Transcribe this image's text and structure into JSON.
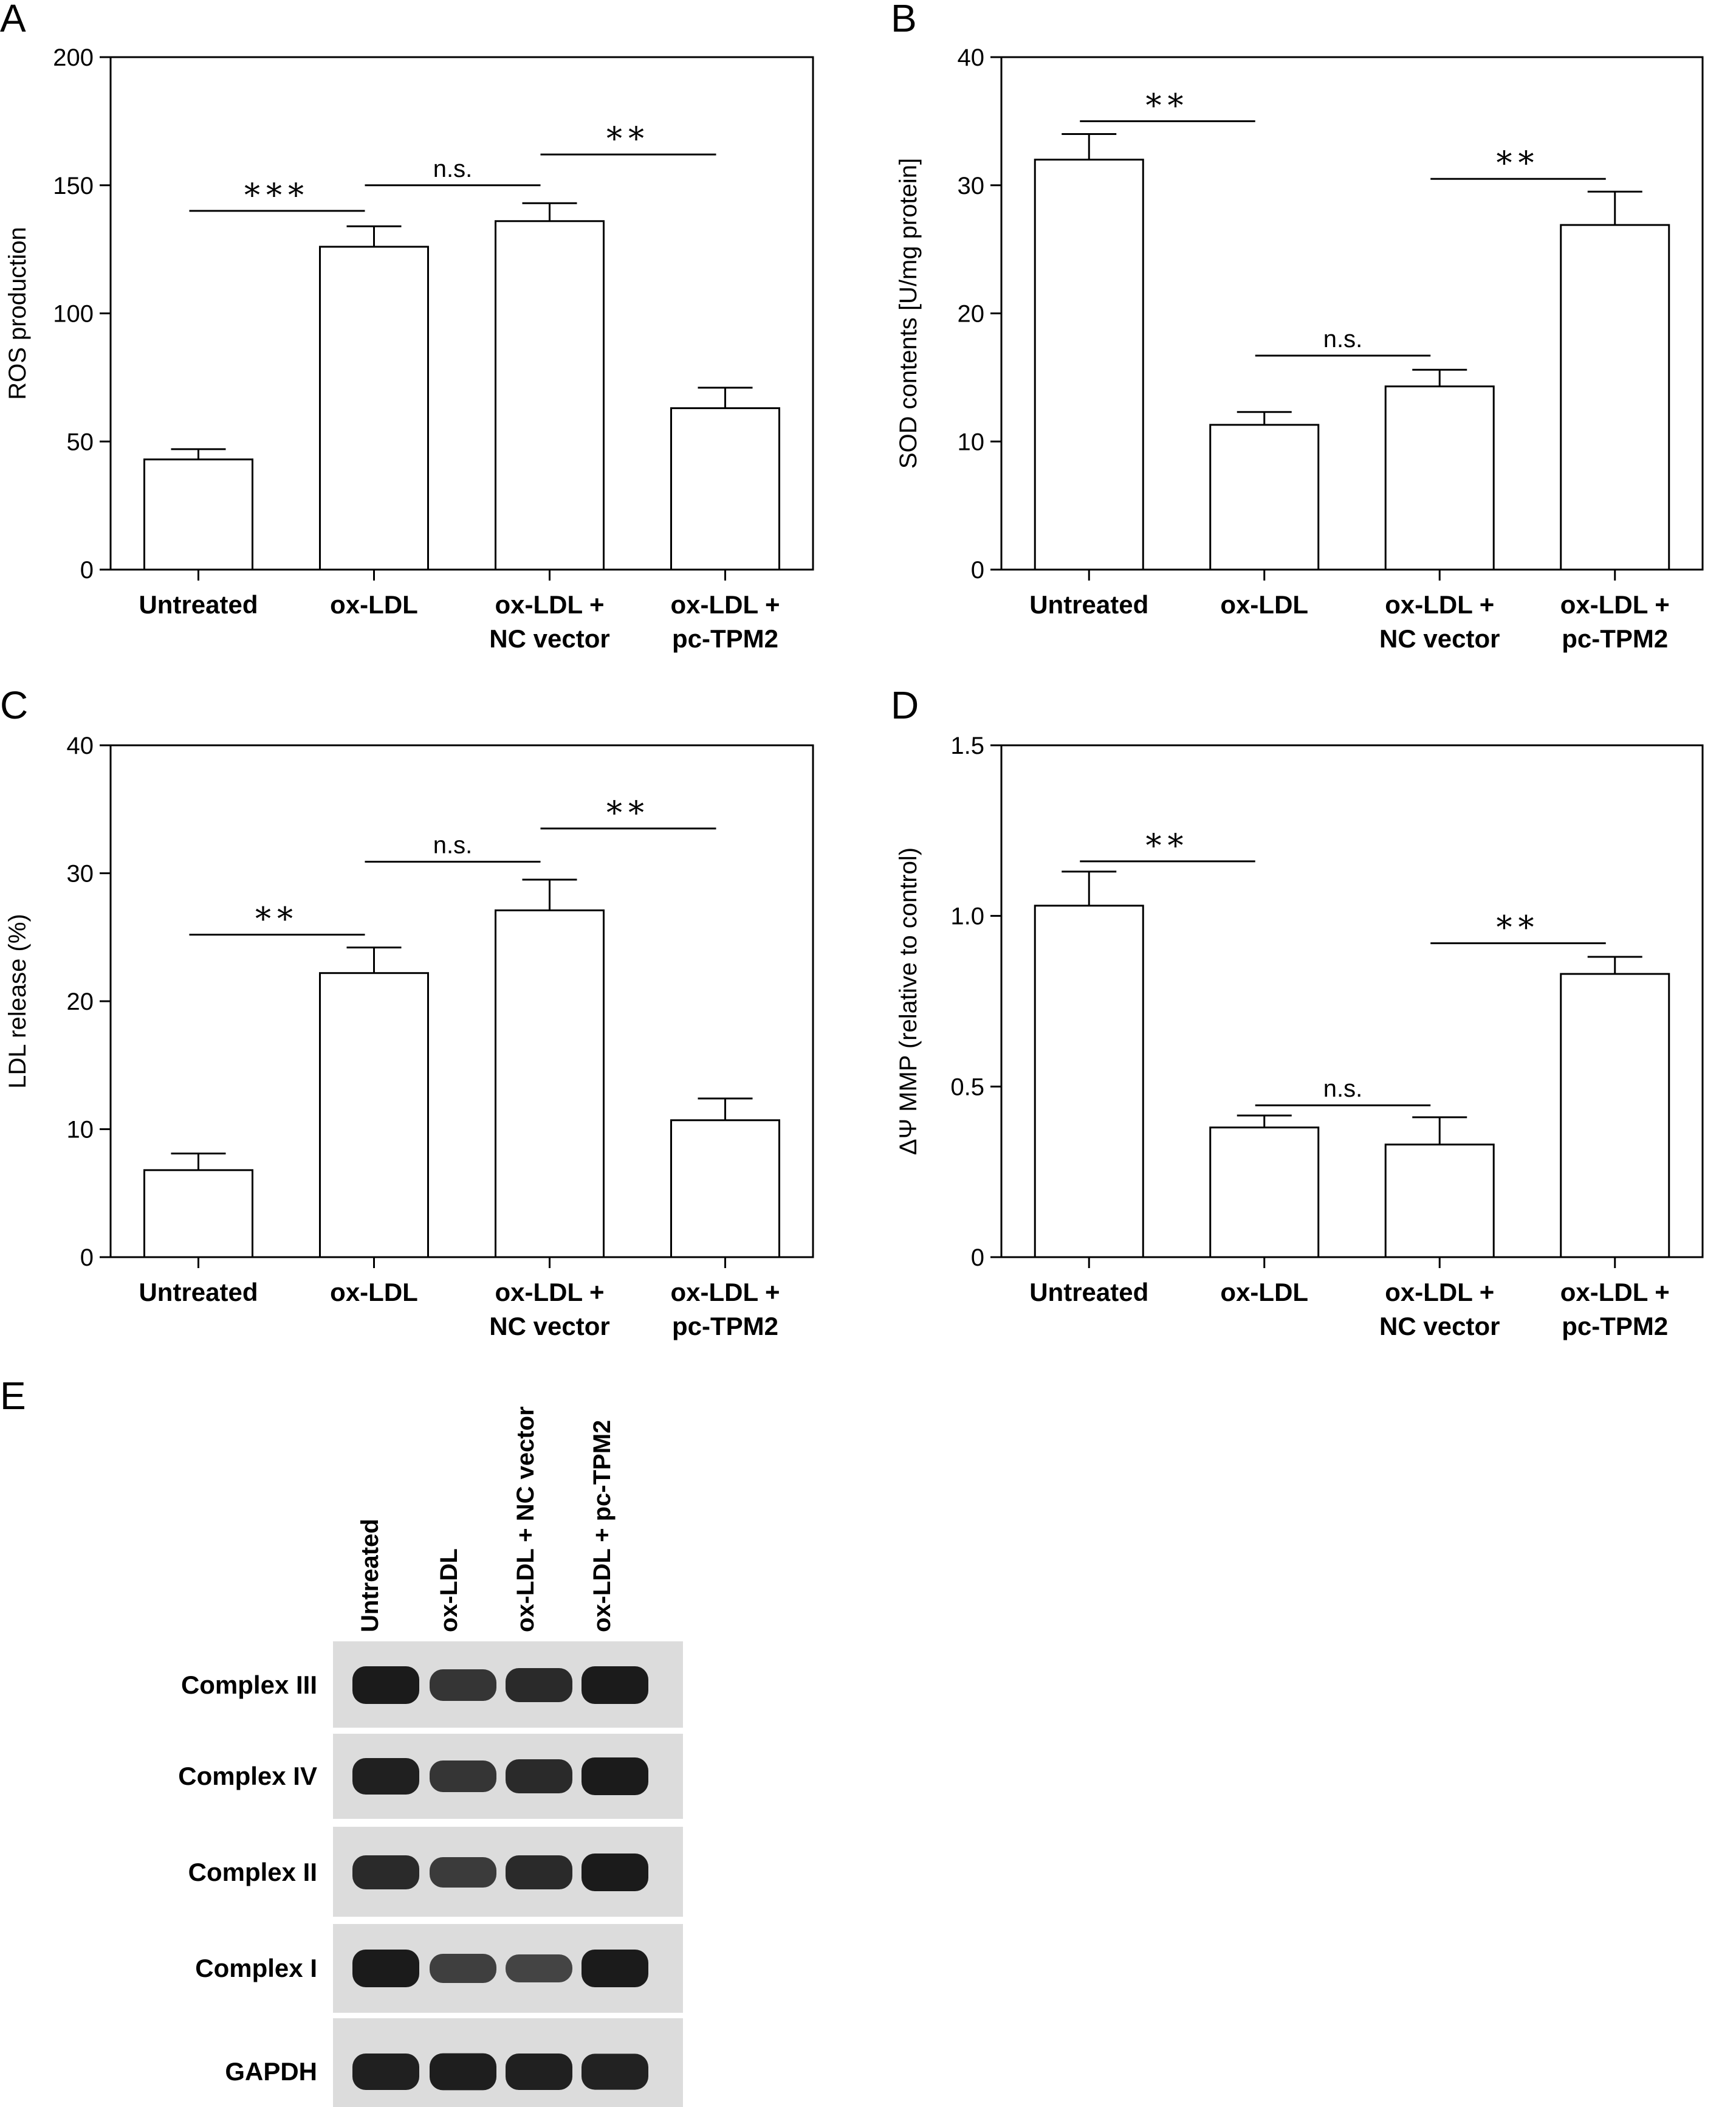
{
  "panel_letters": [
    "A",
    "B",
    "C",
    "D",
    "E"
  ],
  "chart_data": [
    {
      "panel": "A",
      "type": "bar",
      "categories": [
        [
          "Untreated"
        ],
        [
          "ox-LDL"
        ],
        [
          "ox-LDL +",
          "NC vector"
        ],
        [
          "ox-LDL +",
          "pc-TPM2"
        ]
      ],
      "values": [
        43,
        126,
        136,
        63
      ],
      "errors": [
        4,
        8,
        7,
        8
      ],
      "ylabel": "ROS production",
      "ylim": [
        0,
        200
      ],
      "yticks": [
        0,
        50,
        100,
        150,
        200
      ],
      "ytick_labels": [
        "0",
        "50",
        "100",
        "150",
        "200"
      ],
      "significance": [
        {
          "from": 0,
          "to": 1,
          "y": 140,
          "label": "***"
        },
        {
          "from": 1,
          "to": 2,
          "y": 150,
          "label": "n.s."
        },
        {
          "from": 2,
          "to": 3,
          "y": 162,
          "label": "**"
        }
      ]
    },
    {
      "panel": "B",
      "type": "bar",
      "categories": [
        [
          "Untreated"
        ],
        [
          "ox-LDL"
        ],
        [
          "ox-LDL +",
          "NC vector"
        ],
        [
          "ox-LDL +",
          "pc-TPM2"
        ]
      ],
      "values": [
        32,
        11.3,
        14.3,
        26.9
      ],
      "errors": [
        2,
        1,
        1.3,
        2.6
      ],
      "ylabel": "SOD contents [U/mg protein]",
      "ylim": [
        0,
        40
      ],
      "yticks": [
        0,
        10,
        20,
        30,
        40
      ],
      "ytick_labels": [
        "0",
        "10",
        "20",
        "30",
        "40"
      ],
      "significance": [
        {
          "from": 0,
          "to": 1,
          "y": 35,
          "label": "**"
        },
        {
          "from": 1,
          "to": 2,
          "y": 16.7,
          "label": "n.s."
        },
        {
          "from": 2,
          "to": 3,
          "y": 30.5,
          "label": "**"
        }
      ]
    },
    {
      "panel": "C",
      "type": "bar",
      "categories": [
        [
          "Untreated"
        ],
        [
          "ox-LDL"
        ],
        [
          "ox-LDL +",
          "NC vector"
        ],
        [
          "ox-LDL +",
          "pc-TPM2"
        ]
      ],
      "values": [
        6.8,
        22.2,
        27.1,
        10.7
      ],
      "errors": [
        1.3,
        2,
        2.4,
        1.7
      ],
      "ylabel": "LDL release (%)",
      "ylim": [
        0,
        40
      ],
      "yticks": [
        0,
        10,
        20,
        30,
        40
      ],
      "ytick_labels": [
        "0",
        "10",
        "20",
        "30",
        "40"
      ],
      "significance": [
        {
          "from": 0,
          "to": 1,
          "y": 25.2,
          "label": "**"
        },
        {
          "from": 1,
          "to": 2,
          "y": 30.9,
          "label": "n.s."
        },
        {
          "from": 2,
          "to": 3,
          "y": 33.5,
          "label": "**"
        }
      ]
    },
    {
      "panel": "D",
      "type": "bar",
      "categories": [
        [
          "Untreated"
        ],
        [
          "ox-LDL"
        ],
        [
          "ox-LDL +",
          "NC vector"
        ],
        [
          "ox-LDL +",
          "pc-TPM2"
        ]
      ],
      "values": [
        1.03,
        0.38,
        0.33,
        0.83
      ],
      "errors": [
        0.1,
        0.035,
        0.08,
        0.05
      ],
      "ylabel": "ΔΨ MMP (relative to control)",
      "ylim": [
        0,
        1.5
      ],
      "yticks": [
        0,
        0.5,
        1.0,
        1.5
      ],
      "ytick_labels": [
        "0",
        "0.5",
        "1.0",
        "1.5"
      ],
      "significance": [
        {
          "from": 0,
          "to": 1,
          "y": 1.16,
          "label": "**"
        },
        {
          "from": 1,
          "to": 2,
          "y": 0.445,
          "label": "n.s."
        },
        {
          "from": 2,
          "to": 3,
          "y": 0.92,
          "label": "**"
        }
      ]
    }
  ],
  "western_blot": {
    "lanes": [
      "Untreated",
      "ox-LDL",
      "ox-LDL + NC vector",
      "ox-LDL + pc-TPM2"
    ],
    "rows": [
      {
        "label": "Complex III",
        "intensities": [
          0.95,
          0.7,
          0.8,
          0.95
        ]
      },
      {
        "label": "Complex IV",
        "intensities": [
          0.9,
          0.7,
          0.8,
          0.95
        ]
      },
      {
        "label": "Complex II",
        "intensities": [
          0.8,
          0.65,
          0.8,
          0.95
        ]
      },
      {
        "label": "Complex I",
        "intensities": [
          0.95,
          0.6,
          0.55,
          0.95
        ]
      },
      {
        "label": "GAPDH",
        "intensities": [
          0.9,
          0.92,
          0.9,
          0.88
        ]
      }
    ]
  }
}
